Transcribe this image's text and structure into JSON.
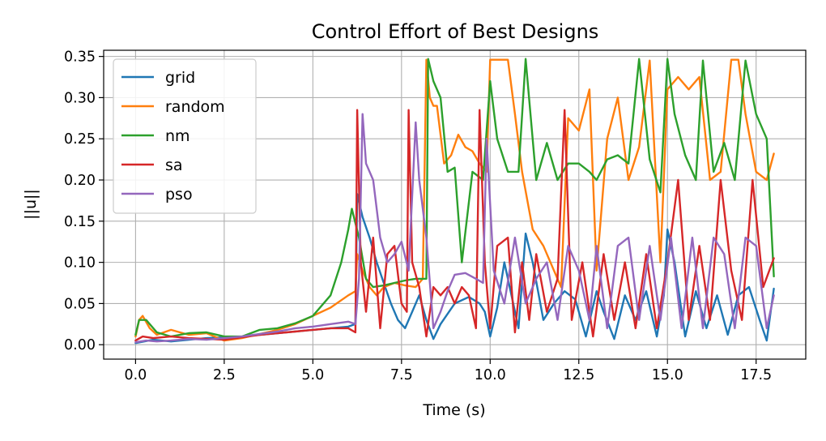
{
  "chart_data": {
    "type": "line",
    "title": "Control Effort of Best Designs",
    "xlabel": "Time (s)",
    "ylabel": "||u||",
    "xlim": [
      -0.9,
      18.9
    ],
    "ylim": [
      -0.0175,
      0.3575
    ],
    "xticks": [
      0,
      2.5,
      5,
      7.5,
      10,
      12.5,
      15,
      17.5
    ],
    "xtick_labels": [
      "0.0",
      "2.5",
      "5.0",
      "7.5",
      "10.0",
      "12.5",
      "15.0",
      "17.5"
    ],
    "yticks": [
      0,
      0.05,
      0.1,
      0.15,
      0.2,
      0.25,
      0.3,
      0.35
    ],
    "ytick_labels": [
      "0.00",
      "0.05",
      "0.10",
      "0.15",
      "0.20",
      "0.25",
      "0.30",
      "0.35"
    ],
    "grid": true,
    "legend_position": "upper-left",
    "series": [
      {
        "name": "grid",
        "color": "#1f77b4",
        "x": [
          0,
          0.5,
          1,
          2,
          3,
          4,
          5,
          5.5,
          6,
          6.2,
          6.25,
          6.4,
          6.6,
          6.8,
          7,
          7.2,
          7.4,
          7.6,
          7.8,
          8,
          8.2,
          8.4,
          8.6,
          9,
          9.4,
          9.7,
          9.85,
          10,
          10.2,
          10.4,
          10.6,
          10.8,
          11,
          11.2,
          11.5,
          11.8,
          12.1,
          12.4,
          12.7,
          13,
          13.2,
          13.5,
          13.8,
          14.1,
          14.4,
          14.7,
          14.9,
          15,
          15.2,
          15.5,
          15.8,
          16.1,
          16.4,
          16.7,
          17,
          17.3,
          17.6,
          17.8,
          18
        ],
        "y": [
          0.002,
          0.006,
          0.004,
          0.008,
          0.01,
          0.014,
          0.018,
          0.02,
          0.022,
          0.025,
          0.183,
          0.155,
          0.13,
          0.1,
          0.075,
          0.05,
          0.03,
          0.02,
          0.04,
          0.06,
          0.03,
          0.007,
          0.025,
          0.05,
          0.058,
          0.05,
          0.04,
          0.01,
          0.045,
          0.1,
          0.06,
          0.02,
          0.135,
          0.1,
          0.03,
          0.05,
          0.065,
          0.055,
          0.01,
          0.065,
          0.04,
          0.007,
          0.06,
          0.03,
          0.065,
          0.01,
          0.06,
          0.14,
          0.1,
          0.01,
          0.065,
          0.02,
          0.06,
          0.012,
          0.06,
          0.07,
          0.03,
          0.005,
          0.068
        ]
      },
      {
        "name": "random",
        "color": "#ff7f0e",
        "x": [
          0,
          0.1,
          0.2,
          0.4,
          0.6,
          1,
          1.5,
          2,
          2.5,
          3,
          3.5,
          4,
          4.5,
          5,
          5.5,
          6,
          6.2,
          6.25,
          6.4,
          6.6,
          6.8,
          7,
          7.3,
          7.6,
          7.9,
          8.1,
          8.2,
          8.3,
          8.4,
          8.5,
          8.7,
          8.9,
          9.1,
          9.3,
          9.5,
          9.7,
          9.9,
          10,
          10.2,
          10.5,
          10.7,
          10.9,
          11.2,
          11.5,
          11.8,
          12,
          12.2,
          12.5,
          12.8,
          13,
          13.3,
          13.6,
          13.9,
          14.2,
          14.5,
          14.8,
          15,
          15.3,
          15.6,
          15.9,
          16.2,
          16.5,
          16.8,
          17,
          17.2,
          17.5,
          17.8,
          18
        ],
        "y": [
          0.01,
          0.03,
          0.035,
          0.02,
          0.012,
          0.018,
          0.012,
          0.014,
          0.005,
          0.008,
          0.013,
          0.018,
          0.025,
          0.035,
          0.045,
          0.06,
          0.065,
          0.11,
          0.09,
          0.07,
          0.06,
          0.07,
          0.075,
          0.072,
          0.07,
          0.08,
          0.346,
          0.3,
          0.29,
          0.29,
          0.22,
          0.23,
          0.255,
          0.24,
          0.235,
          0.22,
          0.21,
          0.346,
          0.346,
          0.346,
          0.28,
          0.21,
          0.14,
          0.12,
          0.09,
          0.07,
          0.275,
          0.26,
          0.31,
          0.09,
          0.25,
          0.3,
          0.2,
          0.24,
          0.345,
          0.1,
          0.31,
          0.325,
          0.31,
          0.325,
          0.2,
          0.21,
          0.346,
          0.346,
          0.28,
          0.21,
          0.2,
          0.232
        ]
      },
      {
        "name": "nm",
        "color": "#2ca02c",
        "x": [
          0,
          0.1,
          0.3,
          0.6,
          1,
          1.5,
          2,
          2.5,
          3,
          3.5,
          4,
          4.5,
          5,
          5.5,
          5.8,
          6,
          6.1,
          6.3,
          6.5,
          6.7,
          7,
          7.3,
          7.6,
          7.9,
          8.2,
          8.25,
          8.4,
          8.6,
          8.8,
          9,
          9.2,
          9.5,
          9.8,
          10,
          10.2,
          10.5,
          10.8,
          11,
          11.3,
          11.6,
          11.9,
          12.2,
          12.5,
          12.8,
          13,
          13.3,
          13.6,
          13.9,
          14.2,
          14.5,
          14.8,
          15,
          15.2,
          15.5,
          15.8,
          16,
          16.3,
          16.6,
          16.9,
          17.2,
          17.5,
          17.8,
          18
        ],
        "y": [
          0.012,
          0.03,
          0.03,
          0.015,
          0.01,
          0.014,
          0.015,
          0.01,
          0.01,
          0.018,
          0.02,
          0.026,
          0.035,
          0.06,
          0.1,
          0.14,
          0.165,
          0.13,
          0.08,
          0.07,
          0.072,
          0.075,
          0.078,
          0.08,
          0.08,
          0.347,
          0.32,
          0.3,
          0.21,
          0.215,
          0.1,
          0.21,
          0.2,
          0.32,
          0.25,
          0.21,
          0.21,
          0.347,
          0.2,
          0.245,
          0.2,
          0.22,
          0.22,
          0.21,
          0.2,
          0.225,
          0.23,
          0.22,
          0.347,
          0.225,
          0.185,
          0.347,
          0.28,
          0.23,
          0.2,
          0.345,
          0.21,
          0.245,
          0.2,
          0.345,
          0.28,
          0.25,
          0.083
        ]
      },
      {
        "name": "sa",
        "color": "#d62728",
        "x": [
          0,
          0.2,
          0.5,
          1,
          1.5,
          2,
          2.5,
          3,
          3.5,
          4,
          4.5,
          5,
          5.5,
          6,
          6.2,
          6.25,
          6.35,
          6.5,
          6.7,
          6.9,
          7.1,
          7.3,
          7.5,
          7.65,
          7.7,
          7.8,
          8,
          8.2,
          8.4,
          8.6,
          8.8,
          9,
          9.2,
          9.4,
          9.6,
          9.7,
          9.85,
          10,
          10.2,
          10.5,
          10.7,
          10.9,
          11.1,
          11.3,
          11.6,
          11.9,
          12.1,
          12.3,
          12.6,
          12.9,
          13.2,
          13.5,
          13.8,
          14.1,
          14.4,
          14.7,
          15,
          15.3,
          15.6,
          15.9,
          16.2,
          16.5,
          16.8,
          17.1,
          17.4,
          17.7,
          18
        ],
        "y": [
          0.005,
          0.01,
          0.008,
          0.01,
          0.008,
          0.007,
          0.006,
          0.009,
          0.012,
          0.014,
          0.016,
          0.018,
          0.02,
          0.02,
          0.015,
          0.285,
          0.1,
          0.04,
          0.13,
          0.02,
          0.11,
          0.12,
          0.05,
          0.04,
          0.285,
          0.1,
          0.07,
          0.01,
          0.07,
          0.06,
          0.07,
          0.05,
          0.07,
          0.06,
          0.02,
          0.285,
          0.1,
          0.02,
          0.12,
          0.13,
          0.015,
          0.1,
          0.03,
          0.11,
          0.04,
          0.08,
          0.285,
          0.03,
          0.1,
          0.01,
          0.11,
          0.03,
          0.1,
          0.02,
          0.11,
          0.02,
          0.1,
          0.2,
          0.03,
          0.12,
          0.03,
          0.2,
          0.09,
          0.03,
          0.2,
          0.07,
          0.105
        ]
      },
      {
        "name": "pso",
        "color": "#9467bd",
        "x": [
          0,
          0.3,
          0.6,
          1,
          1.5,
          2,
          2.5,
          3,
          3.5,
          4,
          4.5,
          5,
          5.5,
          6,
          6.2,
          6.3,
          6.4,
          6.5,
          6.7,
          6.9,
          7.1,
          7.3,
          7.5,
          7.7,
          7.9,
          8,
          8.2,
          8.4,
          8.6,
          8.8,
          9,
          9.3,
          9.6,
          9.8,
          9.9,
          10.1,
          10.4,
          10.7,
          11,
          11.3,
          11.6,
          11.9,
          12.2,
          12.5,
          12.8,
          13,
          13.3,
          13.6,
          13.9,
          14.2,
          14.5,
          14.8,
          15.1,
          15.4,
          15.7,
          16,
          16.3,
          16.6,
          16.9,
          17.2,
          17.5,
          17.8,
          18
        ],
        "y": [
          0.003,
          0.005,
          0.004,
          0.005,
          0.007,
          0.006,
          0.008,
          0.01,
          0.013,
          0.016,
          0.02,
          0.022,
          0.025,
          0.028,
          0.025,
          0.08,
          0.28,
          0.22,
          0.2,
          0.13,
          0.1,
          0.11,
          0.125,
          0.09,
          0.27,
          0.2,
          0.13,
          0.02,
          0.04,
          0.065,
          0.085,
          0.087,
          0.08,
          0.075,
          0.25,
          0.09,
          0.05,
          0.13,
          0.05,
          0.08,
          0.1,
          0.03,
          0.12,
          0.09,
          0.03,
          0.12,
          0.02,
          0.12,
          0.13,
          0.03,
          0.12,
          0.03,
          0.13,
          0.02,
          0.13,
          0.02,
          0.13,
          0.11,
          0.02,
          0.13,
          0.12,
          0.02,
          0.06
        ]
      }
    ]
  }
}
